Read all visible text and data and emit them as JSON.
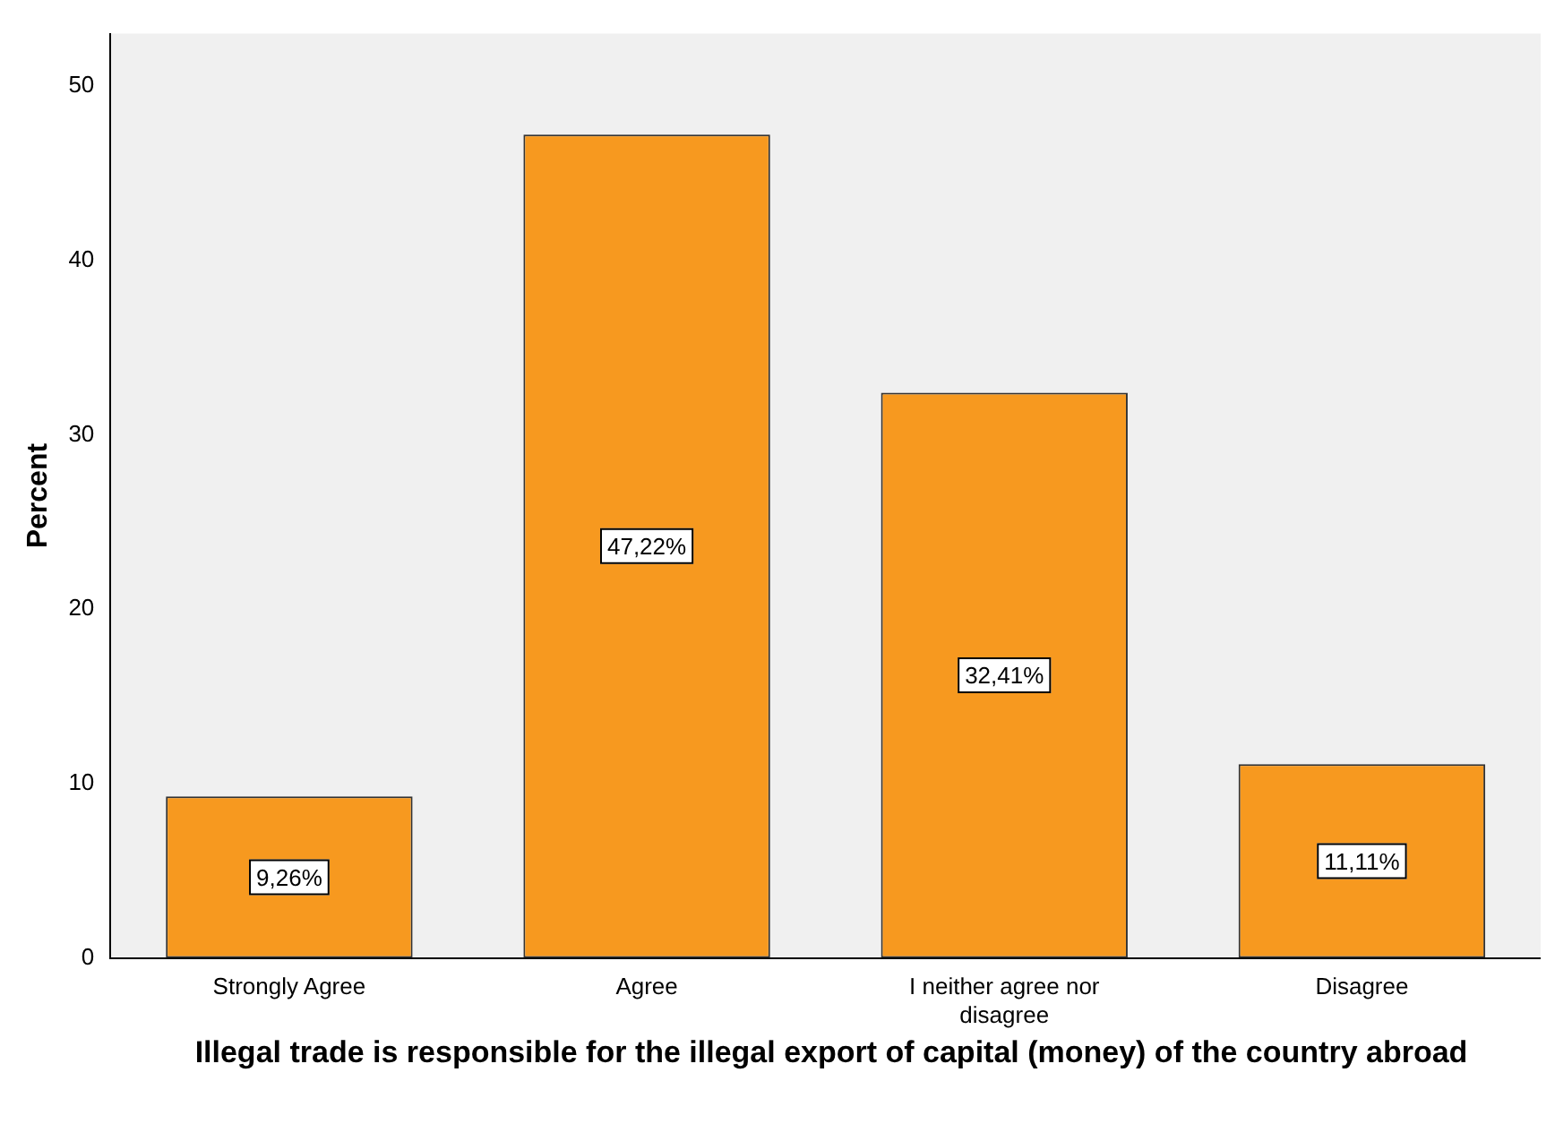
{
  "chart_data": {
    "type": "bar",
    "xlabel": "Illegal trade is responsible for the illegal export of capital (money) of the country abroad",
    "ylabel": "Percent",
    "categories": [
      "Strongly Agree",
      "Agree",
      "I neither agree nor disagree",
      "Disagree"
    ],
    "values": [
      9.26,
      47.22,
      32.41,
      11.11
    ],
    "value_labels": [
      "9,26%",
      "47,22%",
      "32,41%",
      "11,11%"
    ],
    "color": "#f7991f",
    "ylim": [
      0,
      53
    ],
    "yticks": [
      0,
      10,
      20,
      30,
      40,
      50
    ]
  }
}
